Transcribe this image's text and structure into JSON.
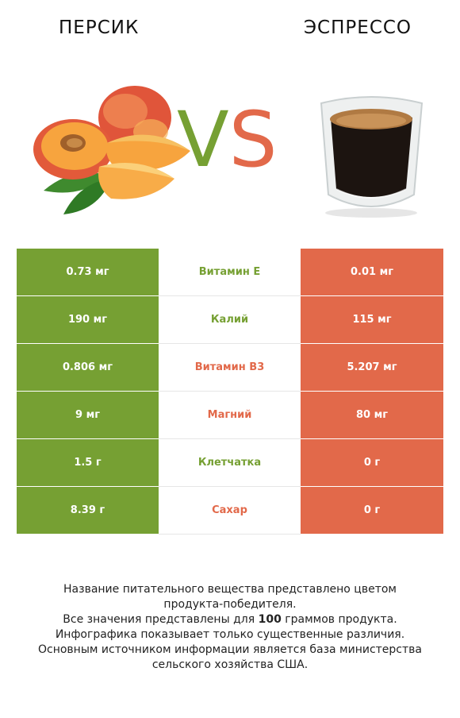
{
  "header": {
    "left_title": "ПЕРСИК",
    "right_title": "ЭСПРЕССО",
    "vs_v": "V",
    "vs_s": "S"
  },
  "colors": {
    "green": "#76a033",
    "red": "#e2694a"
  },
  "rows": [
    {
      "left": "0.73 мг",
      "label": "Витамин E",
      "right": "0.01 мг",
      "winner": "left"
    },
    {
      "left": "190 мг",
      "label": "Калий",
      "right": "115 мг",
      "winner": "left"
    },
    {
      "left": "0.806 мг",
      "label": "Витамин B3",
      "right": "5.207 мг",
      "winner": "right"
    },
    {
      "left": "9 мг",
      "label": "Магний",
      "right": "80 мг",
      "winner": "right"
    },
    {
      "left": "1.5 г",
      "label": "Клетчатка",
      "right": "0 г",
      "winner": "left"
    },
    {
      "left": "8.39 г",
      "label": "Сахар",
      "right": "0 г",
      "winner": "right"
    }
  ],
  "notes": {
    "line1": "Название питательного вещества представлено цветом",
    "line2": "продукта-победителя.",
    "line3_pre": "Все значения представлены для ",
    "line3_num": "100",
    "line3_post": " граммов продукта.",
    "line4": "Инфографика показывает только существенные различия.",
    "line5": "Основным источником информации является база министерства",
    "line6": "сельского хозяйства США."
  }
}
